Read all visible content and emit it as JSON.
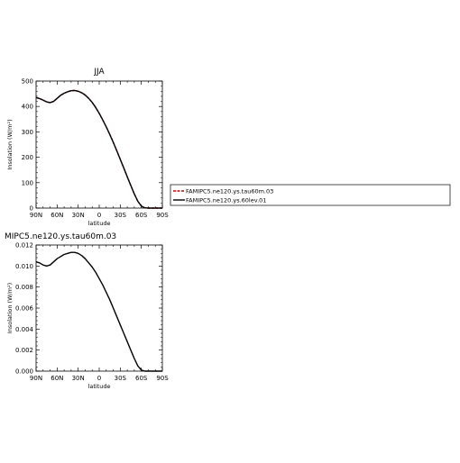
{
  "chart_data": [
    {
      "type": "line",
      "title": "JJA",
      "xlabel": "latitude",
      "ylabel": "Insolation (W/m²)",
      "xlim": [
        90,
        -90
      ],
      "ylim": [
        0,
        500
      ],
      "x_ticks": [
        "90N",
        "60N",
        "30N",
        "0",
        "30S",
        "60S",
        "90S"
      ],
      "x_tick_values": [
        90,
        60,
        30,
        0,
        -30,
        -60,
        -90
      ],
      "y_ticks": [
        "0",
        "100",
        "200",
        "300",
        "400",
        "500"
      ],
      "y_tick_values": [
        0,
        100,
        200,
        300,
        400,
        500
      ],
      "series": [
        {
          "name": "FAMIPC5.ne120.ys.tau60m.03",
          "color": "#cc0000",
          "dash": "dashed",
          "x": [
            90,
            85,
            80,
            75,
            70,
            65,
            60,
            55,
            50,
            45,
            40,
            35,
            30,
            25,
            20,
            15,
            10,
            5,
            0,
            -5,
            -10,
            -15,
            -20,
            -25,
            -30,
            -35,
            -40,
            -45,
            -50,
            -55,
            -60,
            -65,
            -70,
            -75,
            -80,
            -85,
            -90
          ],
          "y": [
            435,
            431,
            425,
            418,
            415,
            420,
            432,
            444,
            452,
            458,
            462,
            463,
            460,
            454,
            445,
            432,
            416,
            396,
            373,
            347,
            320,
            290,
            259,
            226,
            192,
            158,
            123,
            89,
            56,
            27,
            8,
            1,
            0,
            0,
            0,
            0,
            0
          ]
        },
        {
          "name": "FAMIPC5.ne120.ys.60lev.01",
          "color": "#000000",
          "dash": "solid",
          "x": [
            90,
            85,
            80,
            75,
            70,
            65,
            60,
            55,
            50,
            45,
            40,
            35,
            30,
            25,
            20,
            15,
            10,
            5,
            0,
            -5,
            -10,
            -15,
            -20,
            -25,
            -30,
            -35,
            -40,
            -45,
            -50,
            -55,
            -60,
            -65,
            -70,
            -75,
            -80,
            -85,
            -90
          ],
          "y": [
            435,
            431,
            425,
            418,
            415,
            420,
            432,
            444,
            452,
            458,
            462,
            463,
            460,
            454,
            445,
            432,
            416,
            396,
            373,
            347,
            320,
            290,
            259,
            226,
            192,
            158,
            123,
            89,
            56,
            27,
            8,
            1,
            0,
            0,
            0,
            0,
            0
          ]
        }
      ]
    },
    {
      "type": "line",
      "title": "MIPC5.ne120.ys.tau60m.03",
      "xlabel": "latitude",
      "ylabel": "Insolation (W/m²)",
      "xlim": [
        90,
        -90
      ],
      "ylim": [
        0,
        0.012
      ],
      "x_ticks": [
        "90N",
        "60N",
        "30N",
        "0",
        "30S",
        "60S",
        "90S"
      ],
      "x_tick_values": [
        90,
        60,
        30,
        0,
        -30,
        -60,
        -90
      ],
      "y_ticks": [
        "0.000",
        "0.002",
        "0.004",
        "0.006",
        "0.008",
        "0.010",
        "0.012"
      ],
      "y_tick_values": [
        0,
        0.002,
        0.004,
        0.006,
        0.008,
        0.01,
        0.012
      ],
      "series": [
        {
          "color": "#000000",
          "dash": "solid",
          "x": [
            90,
            85,
            80,
            75,
            70,
            65,
            60,
            55,
            50,
            45,
            40,
            35,
            30,
            25,
            20,
            15,
            10,
            5,
            0,
            -5,
            -10,
            -15,
            -20,
            -25,
            -30,
            -35,
            -40,
            -45,
            -50,
            -55,
            -60,
            -65,
            -70,
            -75,
            -80,
            -85,
            -90
          ],
          "y": [
            0.0104,
            0.0103,
            0.0101,
            0.01,
            0.0101,
            0.0104,
            0.0107,
            0.0109,
            0.0111,
            0.0112,
            0.0113,
            0.0113,
            0.0112,
            0.011,
            0.0107,
            0.0103,
            0.0099,
            0.0094,
            0.0088,
            0.0082,
            0.0075,
            0.0068,
            0.006,
            0.0052,
            0.0044,
            0.0036,
            0.0028,
            0.002,
            0.0012,
            0.0005,
            0.0001,
            0.0,
            0.0,
            0.0,
            0.0,
            0.0,
            0.0
          ]
        }
      ]
    }
  ],
  "legend": {
    "placement": "right",
    "entries": [
      {
        "label": "FAMIPC5.ne120.ys.tau60m.03",
        "color": "#cc0000",
        "dash": "dashed"
      },
      {
        "label": "FAMIPC5.ne120.ys.60lev.01",
        "color": "#000000",
        "dash": "solid"
      }
    ]
  }
}
